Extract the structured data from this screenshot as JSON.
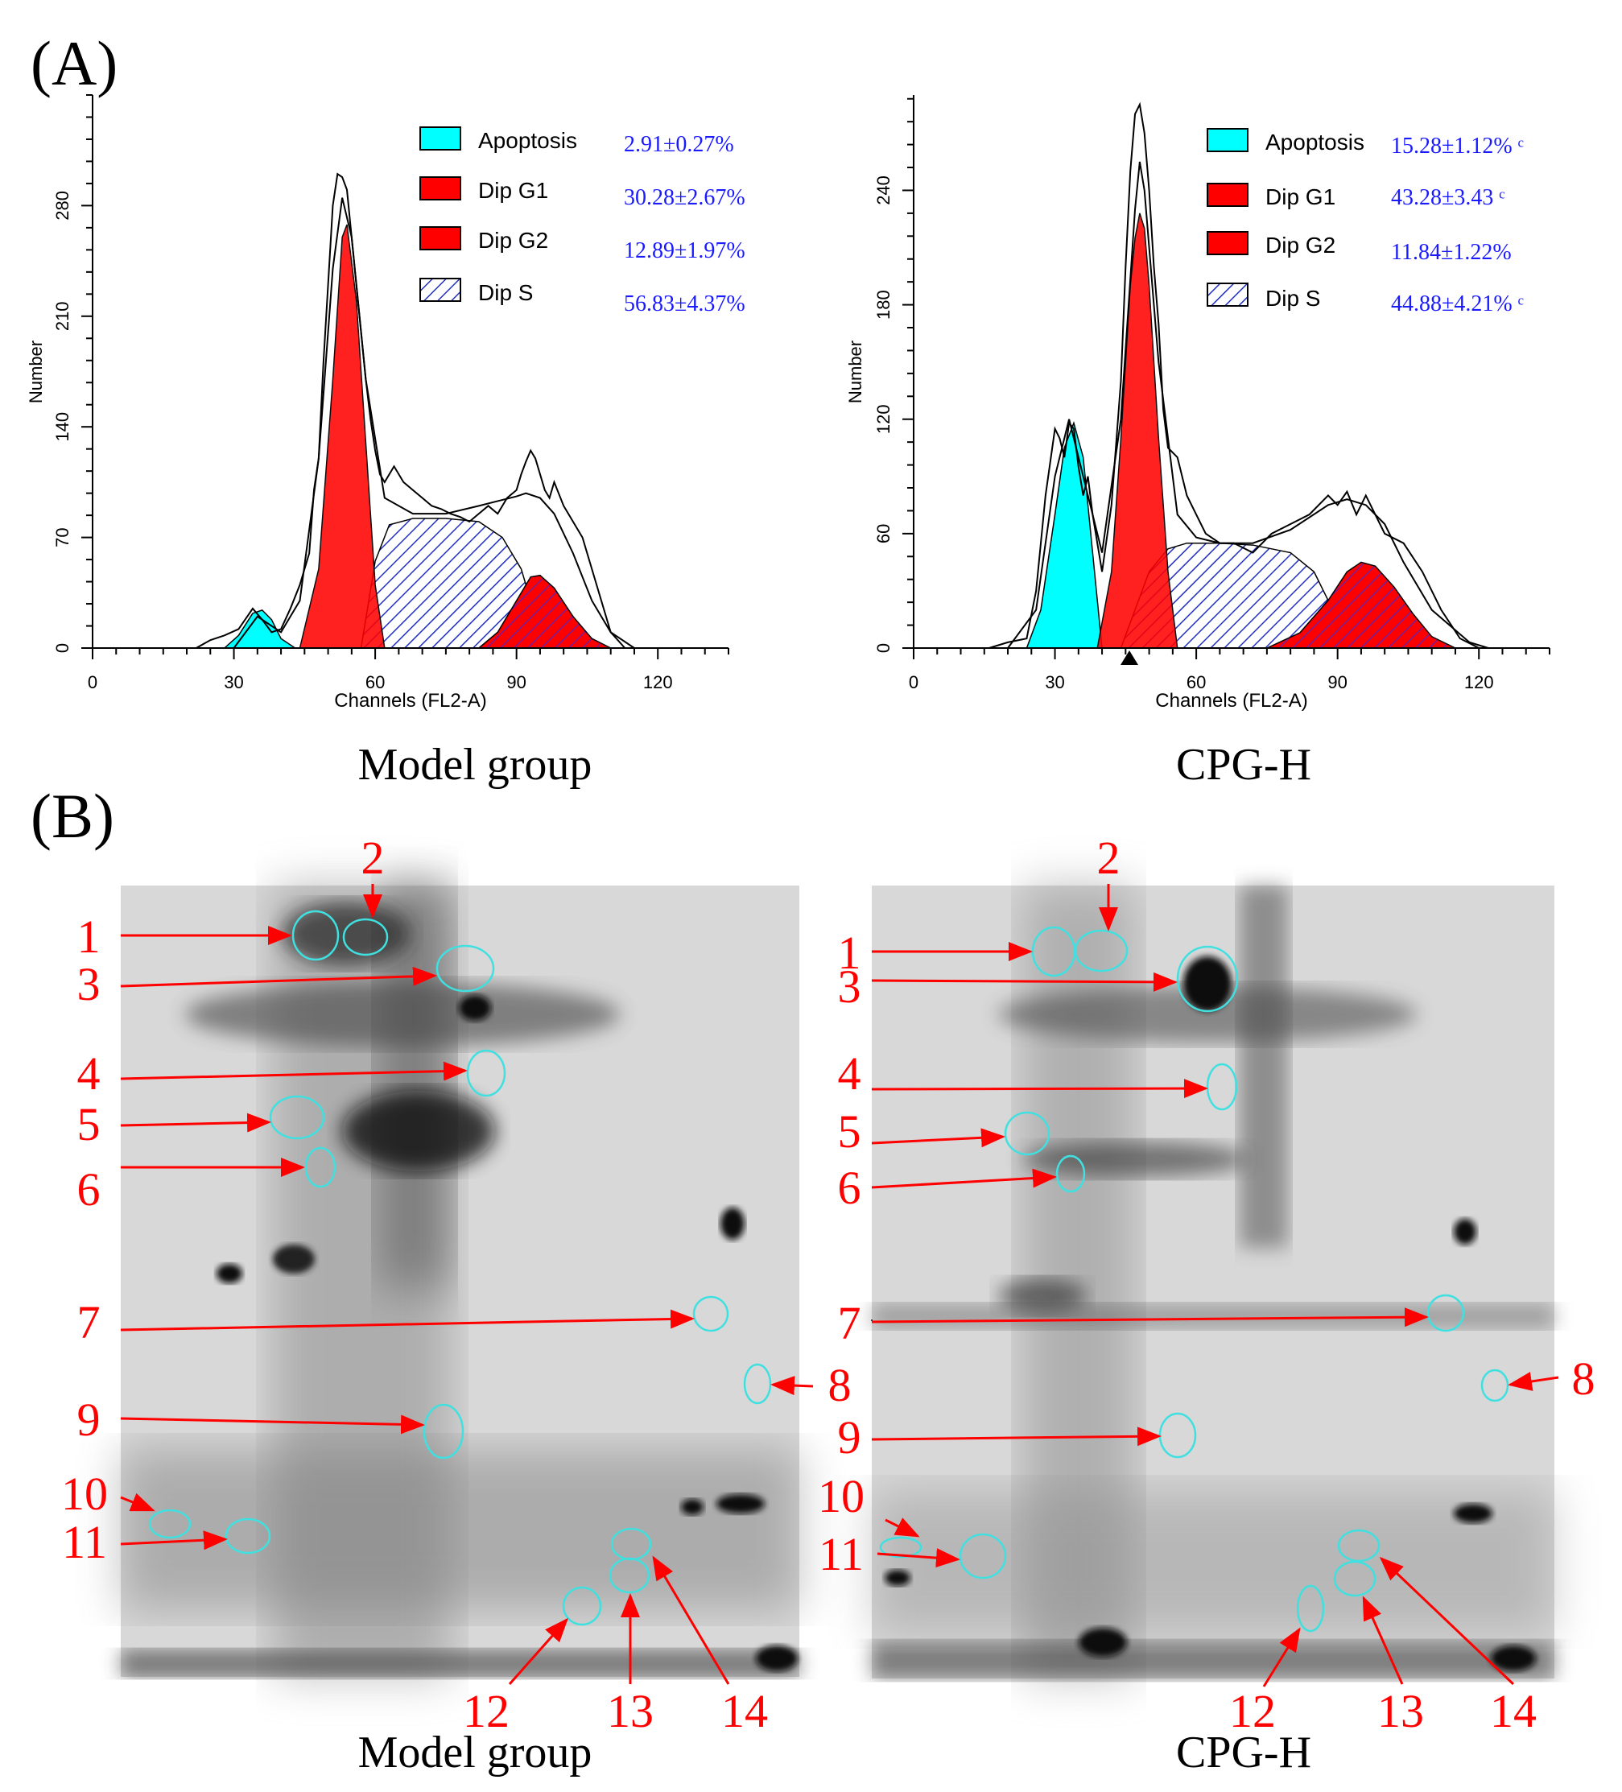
{
  "panels": {
    "A_label": "(A)",
    "B_label": "(B)"
  },
  "colors": {
    "apoptosis": "#00ffff",
    "dip_g1": "#ff0000",
    "dip_g2": "#ff0000",
    "dip_s_hatch": "#2030c0",
    "stat_text": "#1a1aff",
    "arrow": "#ff0000",
    "circle": "#40e0e0"
  },
  "chart_data": [
    {
      "type": "area",
      "caption": "Model group",
      "xlabel": "Channels (FL2-A)",
      "ylabel": "Number",
      "xlim": [
        0,
        135
      ],
      "ylim": [
        0,
        350
      ],
      "xticks": [
        0,
        30,
        60,
        90,
        120
      ],
      "yticks": [
        0,
        70,
        140,
        210,
        280
      ],
      "legend": [
        {
          "label": "Apoptosis",
          "value": "2.91±0.27%",
          "color": "#00ffff",
          "pattern": "solid"
        },
        {
          "label": "Dip G1",
          "value": "30.28±2.67%",
          "color": "#ff0000",
          "pattern": "solid"
        },
        {
          "label": "Dip G2",
          "value": "12.89±1.97%",
          "color": "#ff0000",
          "pattern": "solid"
        },
        {
          "label": "Dip S",
          "value": "56.83±4.37%",
          "color": "#2030c0",
          "pattern": "hatch"
        }
      ],
      "series": [
        {
          "name": "Apoptosis",
          "x": [
            28,
            31,
            34,
            36,
            38,
            40,
            43
          ],
          "y": [
            0,
            8,
            22,
            24,
            18,
            6,
            0
          ]
        },
        {
          "name": "Dip G1",
          "x": [
            44,
            48,
            51,
            53,
            54,
            56,
            58,
            60,
            62
          ],
          "y": [
            0,
            50,
            170,
            260,
            268,
            220,
            130,
            40,
            0
          ]
        },
        {
          "name": "Dip S",
          "x": [
            57,
            60,
            63,
            68,
            75,
            82,
            87,
            91,
            94,
            96
          ],
          "y": [
            0,
            55,
            78,
            82,
            82,
            80,
            70,
            50,
            20,
            0
          ]
        },
        {
          "name": "Dip G2",
          "x": [
            82,
            86,
            90,
            93,
            95,
            98,
            102,
            106,
            110
          ],
          "y": [
            0,
            10,
            30,
            45,
            46,
            38,
            20,
            6,
            0
          ]
        },
        {
          "name": "Raw",
          "x": [
            22,
            25,
            28,
            31,
            34,
            36,
            38,
            40,
            42,
            44,
            46,
            47,
            48,
            49,
            50,
            51,
            52,
            53,
            54,
            55,
            56,
            57,
            58,
            59,
            60,
            61,
            62,
            63,
            64,
            66,
            68,
            70,
            72,
            74,
            76,
            78,
            80,
            82,
            84,
            86,
            88,
            90,
            91,
            92,
            93,
            94,
            95,
            96,
            97,
            98,
            100,
            102,
            104,
            106,
            108,
            110,
            113
          ],
          "y": [
            0,
            5,
            8,
            12,
            25,
            18,
            10,
            12,
            25,
            40,
            60,
            100,
            120,
            180,
            230,
            280,
            300,
            298,
            290,
            260,
            230,
            200,
            170,
            145,
            125,
            110,
            105,
            110,
            115,
            105,
            100,
            95,
            90,
            88,
            85,
            83,
            80,
            85,
            90,
            85,
            95,
            100,
            110,
            118,
            125,
            120,
            110,
            100,
            95,
            105,
            90,
            80,
            70,
            50,
            30,
            10,
            0
          ]
        },
        {
          "name": "Fit",
          "x": [
            30,
            35,
            40,
            44,
            48,
            51,
            53,
            55,
            58,
            62,
            68,
            75,
            82,
            86,
            90,
            92,
            95,
            98,
            102,
            106,
            110,
            115
          ],
          "y": [
            0,
            20,
            10,
            30,
            120,
            240,
            285,
            260,
            170,
            95,
            85,
            85,
            90,
            93,
            96,
            98,
            95,
            85,
            60,
            30,
            10,
            0
          ]
        }
      ]
    },
    {
      "type": "area",
      "caption": "CPG-H",
      "xlabel": "Channels (FL2-A)",
      "ylabel": "Number",
      "xlim": [
        0,
        135
      ],
      "ylim": [
        0,
        290
      ],
      "xticks": [
        0,
        30,
        60,
        90,
        120
      ],
      "yticks": [
        0,
        60,
        120,
        180,
        240
      ],
      "marker_x": 48,
      "legend": [
        {
          "label": "Apoptosis",
          "value": "15.28±1.12% ᶜ",
          "color": "#00ffff",
          "pattern": "solid"
        },
        {
          "label": "Dip G1",
          "value": "43.28±3.43 ᶜ",
          "color": "#ff0000",
          "pattern": "solid"
        },
        {
          "label": "Dip G2",
          "value": "11.84±1.22%",
          "color": "#ff0000",
          "pattern": "solid"
        },
        {
          "label": "Dip S",
          "value": "44.88±4.21% ᶜ",
          "color": "#2030c0",
          "pattern": "hatch"
        }
      ],
      "series": [
        {
          "name": "Apoptosis",
          "x": [
            24,
            27,
            30,
            32,
            34,
            36,
            38,
            40
          ],
          "y": [
            0,
            20,
            70,
            105,
            118,
            100,
            50,
            0
          ]
        },
        {
          "name": "Dip G1",
          "x": [
            39,
            42,
            44,
            46,
            47,
            48,
            49,
            50,
            52,
            54,
            56
          ],
          "y": [
            0,
            40,
            110,
            190,
            215,
            228,
            220,
            190,
            110,
            40,
            0
          ]
        },
        {
          "name": "Dip S",
          "x": [
            44,
            47,
            50,
            54,
            58,
            65,
            72,
            80,
            85,
            89,
            92
          ],
          "y": [
            0,
            20,
            40,
            52,
            55,
            55,
            54,
            50,
            40,
            20,
            0
          ]
        },
        {
          "name": "Dip G2",
          "x": [
            75,
            82,
            88,
            92,
            95,
            98,
            102,
            106,
            110,
            115
          ],
          "y": [
            0,
            8,
            25,
            40,
            45,
            43,
            32,
            18,
            6,
            0
          ]
        },
        {
          "name": "Raw",
          "x": [
            16,
            20,
            24,
            26,
            28,
            30,
            31,
            32,
            33,
            34,
            35,
            36,
            37,
            38,
            40,
            42,
            44,
            45,
            46,
            47,
            48,
            49,
            50,
            51,
            52,
            53,
            54,
            56,
            58,
            60,
            62,
            65,
            68,
            72,
            76,
            80,
            84,
            88,
            90,
            92,
            94,
            96,
            98,
            100,
            104,
            108,
            112,
            116,
            120
          ],
          "y": [
            0,
            3,
            5,
            30,
            80,
            115,
            110,
            100,
            118,
            115,
            95,
            80,
            90,
            70,
            40,
            75,
            140,
            200,
            250,
            280,
            285,
            270,
            240,
            200,
            170,
            125,
            105,
            100,
            80,
            70,
            60,
            55,
            55,
            50,
            60,
            65,
            70,
            80,
            75,
            82,
            70,
            80,
            70,
            60,
            55,
            40,
            20,
            5,
            0
          ]
        },
        {
          "name": "Fit",
          "x": [
            20,
            26,
            30,
            33,
            36,
            40,
            44,
            47,
            48,
            49,
            52,
            56,
            60,
            65,
            72,
            80,
            88,
            92,
            96,
            100,
            104,
            110,
            118,
            122
          ],
          "y": [
            0,
            20,
            90,
            120,
            90,
            50,
            120,
            230,
            255,
            240,
            150,
            70,
            58,
            55,
            55,
            62,
            75,
            78,
            75,
            65,
            45,
            20,
            3,
            0
          ]
        }
      ]
    }
  ],
  "gels": [
    {
      "caption": "Model group",
      "spot_labels": [
        "1",
        "2",
        "3",
        "4",
        "5",
        "6",
        "7",
        "8",
        "9",
        "10",
        "11",
        "12",
        "13",
        "14"
      ]
    },
    {
      "caption": "CPG-H",
      "spot_labels": [
        "1",
        "2",
        "3",
        "4",
        "5",
        "6",
        "7",
        "8",
        "9",
        "10",
        "11",
        "12",
        "13",
        "14"
      ]
    }
  ]
}
